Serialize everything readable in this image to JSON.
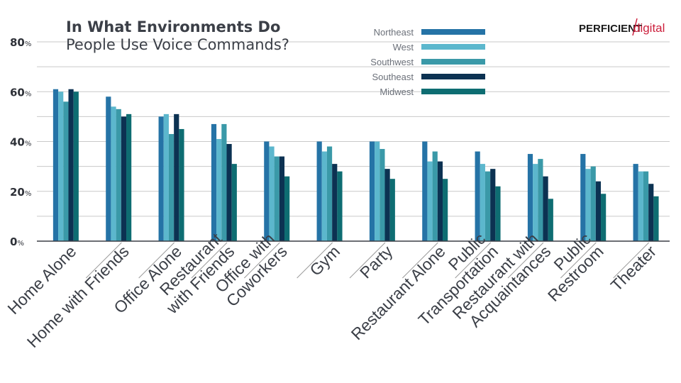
{
  "brand": {
    "logo_part1": "PERFICIENT",
    "logo_part2": "digital",
    "logo_color": "#cc1f3c"
  },
  "chart_data": {
    "type": "bar",
    "title": "In What Environments Do",
    "subtitle": "People Use Voice Commands?",
    "xlabel": "",
    "ylabel": "",
    "ylim": [
      0,
      80
    ],
    "yticks": [
      0,
      20,
      40,
      60,
      80
    ],
    "ytick_suffix": "%",
    "grid": true,
    "legend_position": "top-center",
    "categories": [
      [
        "Home Alone"
      ],
      [
        "Home with Friends"
      ],
      [
        "Office Alone"
      ],
      [
        "Restaurant",
        "with Friends"
      ],
      [
        "Office with",
        "Coworkers"
      ],
      [
        "Gym"
      ],
      [
        "Party"
      ],
      [
        "Restaurant Alone"
      ],
      [
        "Public",
        "Transportation"
      ],
      [
        "Restaurant with",
        "Acquaintances"
      ],
      [
        "Public",
        "Restroom"
      ],
      [
        "Theater"
      ]
    ],
    "series": [
      {
        "name": "Northeast",
        "color": "#2573a6",
        "values": [
          61,
          58,
          50,
          47,
          40,
          40,
          40,
          40,
          36,
          35,
          35,
          31
        ]
      },
      {
        "name": "West",
        "color": "#5cb7cd",
        "values": [
          60,
          54,
          51,
          41,
          38,
          36,
          40,
          32,
          31,
          31,
          29,
          28
        ]
      },
      {
        "name": "Southwest",
        "color": "#3a99a8",
        "values": [
          56,
          53,
          43,
          47,
          34,
          38,
          37,
          36,
          28,
          33,
          30,
          28
        ]
      },
      {
        "name": "Southeast",
        "color": "#0c3252",
        "values": [
          61,
          50,
          51,
          39,
          34,
          31,
          29,
          32,
          29,
          26,
          24,
          23
        ]
      },
      {
        "name": "Midwest",
        "color": "#0e6d72",
        "values": [
          60,
          51,
          45,
          31,
          26,
          28,
          25,
          25,
          22,
          17,
          19,
          18
        ]
      }
    ]
  }
}
